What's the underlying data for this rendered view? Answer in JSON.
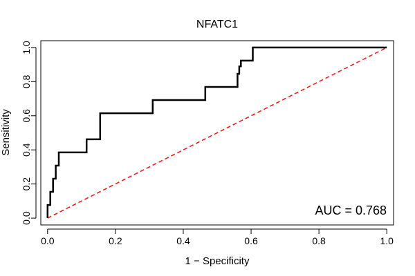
{
  "chart_data": {
    "type": "line",
    "title": "NFATC1",
    "xlabel": "1 − Specificity",
    "ylabel": "Sensitivity",
    "xlim": [
      -0.02,
      1.02
    ],
    "ylim": [
      -0.04,
      1.04
    ],
    "xticks": [
      0.0,
      0.2,
      0.4,
      0.6,
      0.8,
      1.0
    ],
    "yticks": [
      0.0,
      0.2,
      0.4,
      0.6,
      0.8,
      1.0
    ],
    "xtick_labels": [
      "0.0",
      "0.2",
      "0.4",
      "0.6",
      "0.8",
      "1.0"
    ],
    "ytick_labels": [
      "0.0",
      "0.2",
      "0.4",
      "0.6",
      "0.8",
      "1.0"
    ],
    "grid": false,
    "series": [
      {
        "color": "#000000",
        "style": "solid-step",
        "x": [
          0.0,
          0.0,
          0.008,
          0.008,
          0.016,
          0.016,
          0.024,
          0.024,
          0.033,
          0.033,
          0.115,
          0.115,
          0.155,
          0.155,
          0.31,
          0.31,
          0.465,
          0.465,
          0.56,
          0.56,
          0.565,
          0.565,
          0.57,
          0.57,
          0.605,
          0.605,
          1.0
        ],
        "y": [
          0.0,
          0.077,
          0.077,
          0.154,
          0.154,
          0.231,
          0.231,
          0.308,
          0.308,
          0.385,
          0.385,
          0.462,
          0.462,
          0.615,
          0.615,
          0.692,
          0.692,
          0.769,
          0.769,
          0.846,
          0.846,
          0.89,
          0.89,
          0.923,
          0.923,
          1.0,
          1.0
        ]
      },
      {
        "color": "#e8211f",
        "style": "dashed",
        "x": [
          0.0,
          1.0
        ],
        "y": [
          0.0,
          1.0
        ]
      }
    ],
    "annotation": "AUC = 0.768"
  }
}
